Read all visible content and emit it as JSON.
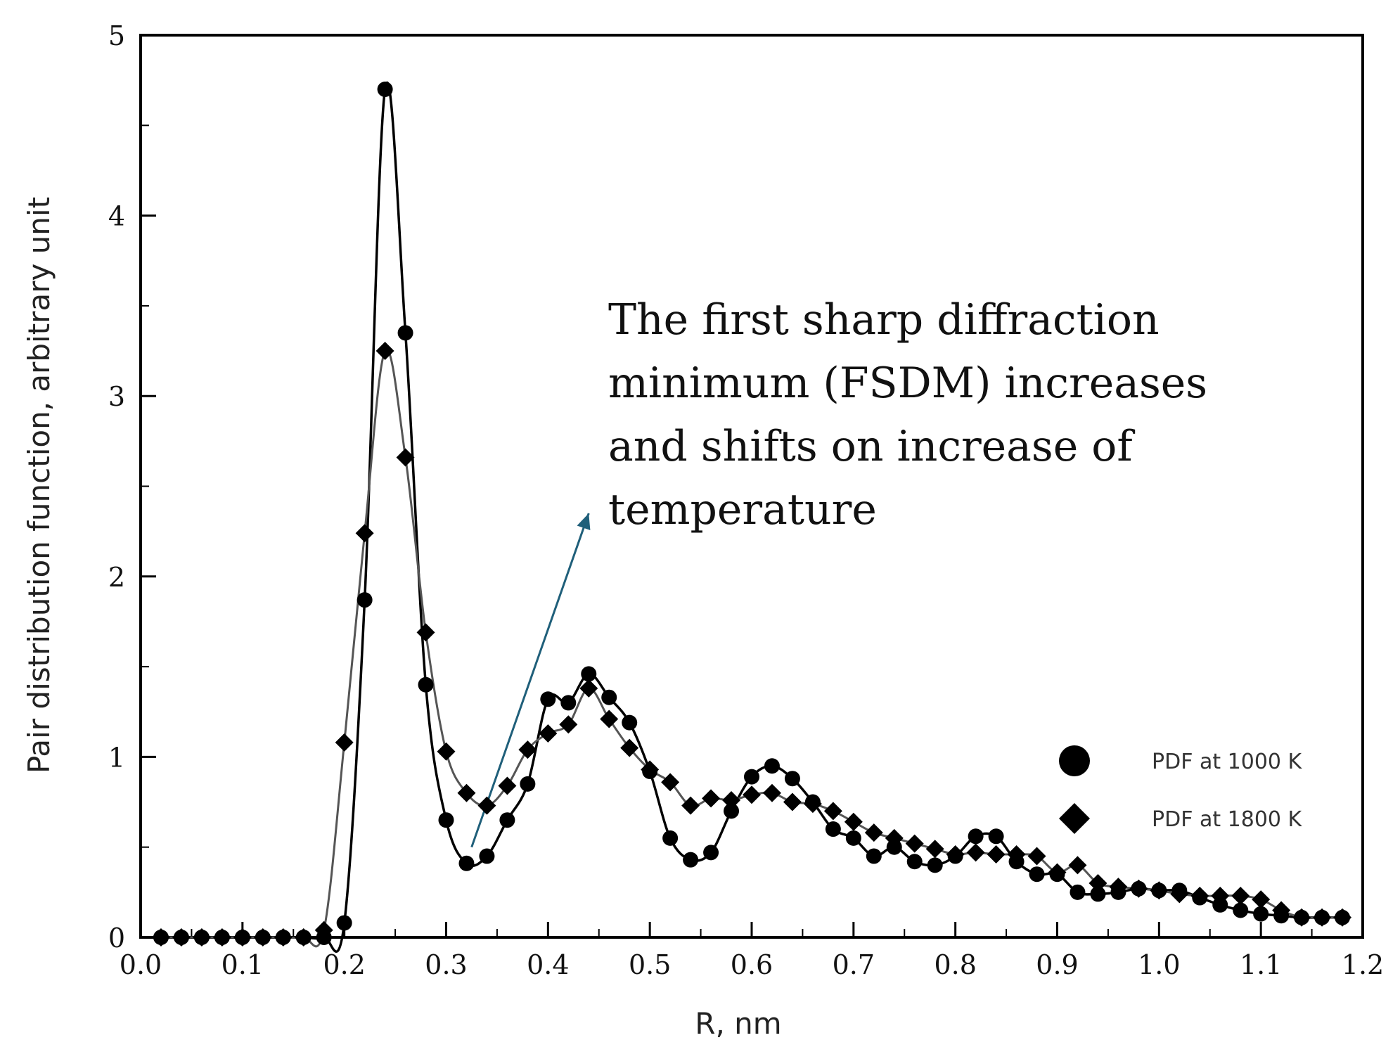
{
  "chart_data": {
    "type": "line",
    "xlabel": "R, nm",
    "ylabel": "Pair distribution function, arbitrary unit",
    "xlim": [
      0.0,
      1.2
    ],
    "ylim": [
      0,
      5
    ],
    "x_ticks": [
      "0.0",
      "0.1",
      "0.2",
      "0.3",
      "0.4",
      "0.5",
      "0.6",
      "0.7",
      "0.8",
      "0.9",
      "1.0",
      "1.1",
      "1.2"
    ],
    "y_ticks": [
      "0",
      "1",
      "2",
      "3",
      "4",
      "5"
    ],
    "grid": false,
    "legend_position": "right",
    "annotation": {
      "lines": [
        "The first sharp diffraction",
        "minimum (FSDM) increases",
        "and shifts on increase of",
        "temperature"
      ],
      "arrow_from": [
        0.325,
        0.5
      ],
      "arrow_to": [
        0.44,
        2.35
      ],
      "arrow_color": "#1f5f7a"
    },
    "series": [
      {
        "name": "PDF at 1000 K",
        "marker": "circle",
        "color": "#000000",
        "x": [
          0.02,
          0.04,
          0.06,
          0.08,
          0.1,
          0.12,
          0.14,
          0.16,
          0.18,
          0.2,
          0.22,
          0.24,
          0.26,
          0.28,
          0.3,
          0.32,
          0.34,
          0.36,
          0.38,
          0.4,
          0.42,
          0.44,
          0.46,
          0.48,
          0.5,
          0.52,
          0.54,
          0.56,
          0.58,
          0.6,
          0.62,
          0.64,
          0.66,
          0.68,
          0.7,
          0.72,
          0.74,
          0.76,
          0.78,
          0.8,
          0.82,
          0.84,
          0.86,
          0.88,
          0.9,
          0.92,
          0.94,
          0.96,
          0.98,
          1.0,
          1.02,
          1.04,
          1.06,
          1.08,
          1.1,
          1.12,
          1.14,
          1.16,
          1.18
        ],
        "values": [
          0,
          0,
          0,
          0,
          0,
          0,
          0,
          0,
          0,
          0.08,
          1.87,
          4.7,
          3.35,
          1.4,
          0.65,
          0.41,
          0.45,
          0.65,
          0.85,
          1.32,
          1.3,
          1.46,
          1.33,
          1.19,
          0.92,
          0.55,
          0.43,
          0.47,
          0.7,
          0.89,
          0.95,
          0.88,
          0.75,
          0.6,
          0.55,
          0.45,
          0.5,
          0.42,
          0.4,
          0.45,
          0.56,
          0.56,
          0.42,
          0.35,
          0.35,
          0.25,
          0.24,
          0.25,
          0.27,
          0.26,
          0.26,
          0.22,
          0.18,
          0.15,
          0.13,
          0.12,
          0.11,
          0.11,
          0.11
        ]
      },
      {
        "name": "PDF at 1800 K",
        "marker": "diamond",
        "color": "#000000",
        "x": [
          0.02,
          0.04,
          0.06,
          0.08,
          0.1,
          0.12,
          0.14,
          0.16,
          0.18,
          0.2,
          0.22,
          0.24,
          0.26,
          0.28,
          0.3,
          0.32,
          0.34,
          0.36,
          0.38,
          0.4,
          0.42,
          0.44,
          0.46,
          0.48,
          0.5,
          0.52,
          0.54,
          0.56,
          0.58,
          0.6,
          0.62,
          0.64,
          0.66,
          0.68,
          0.7,
          0.72,
          0.74,
          0.76,
          0.78,
          0.8,
          0.82,
          0.84,
          0.86,
          0.88,
          0.9,
          0.92,
          0.94,
          0.96,
          0.98,
          1.0,
          1.02,
          1.04,
          1.06,
          1.08,
          1.1,
          1.12,
          1.14,
          1.16,
          1.18
        ],
        "values": [
          0,
          0,
          0,
          0,
          0,
          0,
          0,
          0,
          0.04,
          1.08,
          2.24,
          3.25,
          2.66,
          1.69,
          1.03,
          0.8,
          0.73,
          0.84,
          1.04,
          1.13,
          1.18,
          1.38,
          1.21,
          1.05,
          0.93,
          0.86,
          0.73,
          0.77,
          0.76,
          0.79,
          0.8,
          0.75,
          0.74,
          0.7,
          0.64,
          0.58,
          0.55,
          0.52,
          0.49,
          0.46,
          0.47,
          0.46,
          0.46,
          0.45,
          0.36,
          0.4,
          0.3,
          0.28,
          0.27,
          0.26,
          0.24,
          0.23,
          0.23,
          0.23,
          0.21,
          0.15,
          0.11,
          0.11,
          0.11
        ]
      }
    ]
  }
}
